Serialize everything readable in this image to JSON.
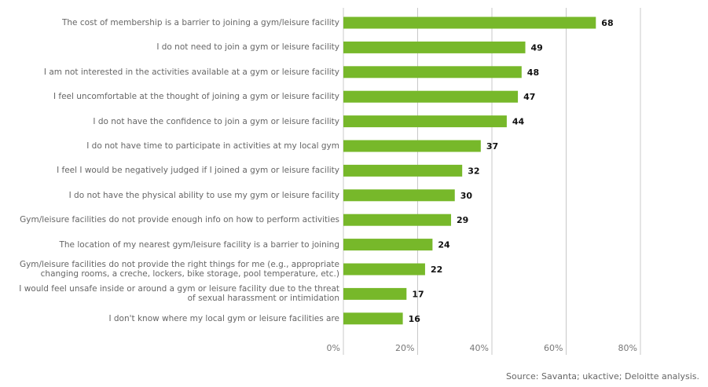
{
  "chart_data": {
    "type": "barh",
    "categories": [
      "The cost of membership is a barrier to joining a gym/leisure facility",
      "I do not need to join a gym or leisure facility",
      "I am not interested in the activities available at a gym or leisure facility",
      "I feel uncomfortable at the thought of joining a gym or leisure facility",
      "I do not have the confidence to join a gym or leisure facility",
      "I do not have time to participate in activities at my local gym",
      "I feel I would be negatively judged if I joined a gym or leisure facility",
      "I do not have the physical ability to use my gym or leisure facility",
      "Gym/leisure facilities do not provide enough info on how to perform activities",
      "The location of my nearest gym/leisure facility is a barrier to joining",
      "Gym/leisure facilities do not provide the right things for me (e.g., appropriate\nchanging rooms, a creche, lockers, bike storage, pool temperature, etc.)",
      "I would feel unsafe inside or around a gym or leisure facility due to the threat\nof sexual harassment or intimidation",
      "I don't know where my local gym or leisure facilities are"
    ],
    "values": [
      68,
      49,
      48,
      47,
      44,
      37,
      32,
      30,
      29,
      24,
      22,
      17,
      16
    ],
    "color": "#77b82a",
    "xlim": [
      0,
      80
    ],
    "xticks": [
      {
        "value": 0,
        "label": "0%"
      },
      {
        "value": 20,
        "label": "20%"
      },
      {
        "value": 40,
        "label": "40%"
      },
      {
        "value": 60,
        "label": "60%"
      },
      {
        "value": 80,
        "label": "80%"
      }
    ],
    "grid": true,
    "source": "Source: Savanta; ukactive; Deloitte analysis."
  }
}
